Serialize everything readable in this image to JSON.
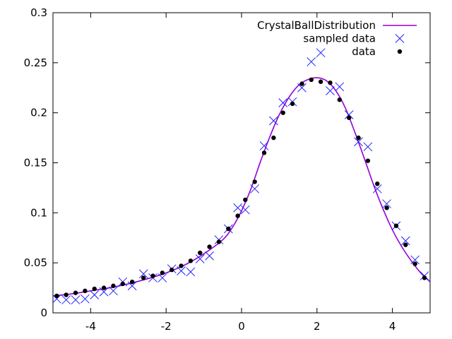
{
  "chart_data": {
    "type": "line",
    "title": "",
    "xlabel": "",
    "ylabel": "",
    "xlim": [
      -5,
      5
    ],
    "ylim": [
      0,
      0.3
    ],
    "xticks": [
      -4,
      -2,
      0,
      2,
      4
    ],
    "yticks": [
      0,
      0.05,
      0.1,
      0.15,
      0.2,
      0.25,
      0.3
    ],
    "xtick_labels": [
      "-4",
      "-2",
      "0",
      "2",
      "4"
    ],
    "ytick_labels": [
      "0",
      "0.05",
      "0.1",
      "0.15",
      "0.2",
      "0.25",
      "0.3"
    ],
    "grid": false,
    "legend_position": "top-right",
    "series": [
      {
        "name": "CrystalBallDistribution",
        "kind": "line",
        "color": "#9400d3",
        "x": [
          -5,
          -4.5,
          -4,
          -3.5,
          -3,
          -2.5,
          -2,
          -1.5,
          -1,
          -0.5,
          -0.25,
          0,
          0.25,
          0.5,
          0.75,
          1,
          1.25,
          1.5,
          1.75,
          2,
          2.25,
          2.5,
          2.75,
          3,
          3.25,
          3.5,
          3.75,
          4,
          4.25,
          4.5,
          4.75,
          5
        ],
        "y": [
          0.017,
          0.019,
          0.022,
          0.025,
          0.029,
          0.034,
          0.04,
          0.048,
          0.059,
          0.073,
          0.085,
          0.102,
          0.124,
          0.151,
          0.176,
          0.198,
          0.215,
          0.227,
          0.233,
          0.235,
          0.232,
          0.222,
          0.205,
          0.181,
          0.155,
          0.128,
          0.104,
          0.083,
          0.066,
          0.052,
          0.04,
          0.031
        ]
      },
      {
        "name": "sampled data",
        "kind": "scatter",
        "marker": "x",
        "color": "#1f1fff",
        "x": [
          -4.9,
          -4.65,
          -4.4,
          -4.15,
          -3.9,
          -3.65,
          -3.4,
          -3.15,
          -2.9,
          -2.6,
          -2.35,
          -2.1,
          -1.85,
          -1.6,
          -1.35,
          -1.1,
          -0.85,
          -0.6,
          -0.35,
          -0.1,
          0.1,
          0.35,
          0.6,
          0.85,
          1.1,
          1.35,
          1.6,
          1.85,
          2.1,
          2.35,
          2.6,
          2.85,
          3.1,
          3.35,
          3.6,
          3.85,
          4.1,
          4.35,
          4.6,
          4.85
        ],
        "y": [
          0.014,
          0.013,
          0.013,
          0.014,
          0.018,
          0.021,
          0.022,
          0.031,
          0.027,
          0.039,
          0.035,
          0.035,
          0.044,
          0.042,
          0.041,
          0.054,
          0.057,
          0.073,
          0.084,
          0.105,
          0.103,
          0.124,
          0.167,
          0.192,
          0.21,
          0.211,
          0.225,
          0.251,
          0.26,
          0.222,
          0.226,
          0.198,
          0.171,
          0.166,
          0.124,
          0.109,
          0.087,
          0.072,
          0.053,
          0.037
        ]
      },
      {
        "name": "data",
        "kind": "scatter",
        "marker": "dot",
        "color": "#000000",
        "x": [
          -4.9,
          -4.65,
          -4.4,
          -4.15,
          -3.9,
          -3.65,
          -3.4,
          -3.15,
          -2.9,
          -2.6,
          -2.35,
          -2.1,
          -1.85,
          -1.6,
          -1.35,
          -1.1,
          -0.85,
          -0.6,
          -0.35,
          -0.1,
          0.1,
          0.35,
          0.6,
          0.85,
          1.1,
          1.35,
          1.6,
          1.85,
          2.1,
          2.35,
          2.6,
          2.85,
          3.1,
          3.35,
          3.6,
          3.85,
          4.1,
          4.35,
          4.6,
          4.85
        ],
        "y": [
          0.017,
          0.018,
          0.02,
          0.022,
          0.024,
          0.025,
          0.027,
          0.029,
          0.031,
          0.035,
          0.037,
          0.04,
          0.043,
          0.047,
          0.052,
          0.06,
          0.066,
          0.071,
          0.084,
          0.097,
          0.113,
          0.131,
          0.16,
          0.175,
          0.2,
          0.209,
          0.229,
          0.233,
          0.231,
          0.23,
          0.213,
          0.195,
          0.175,
          0.152,
          0.129,
          0.105,
          0.087,
          0.068,
          0.049,
          0.035
        ]
      }
    ]
  }
}
